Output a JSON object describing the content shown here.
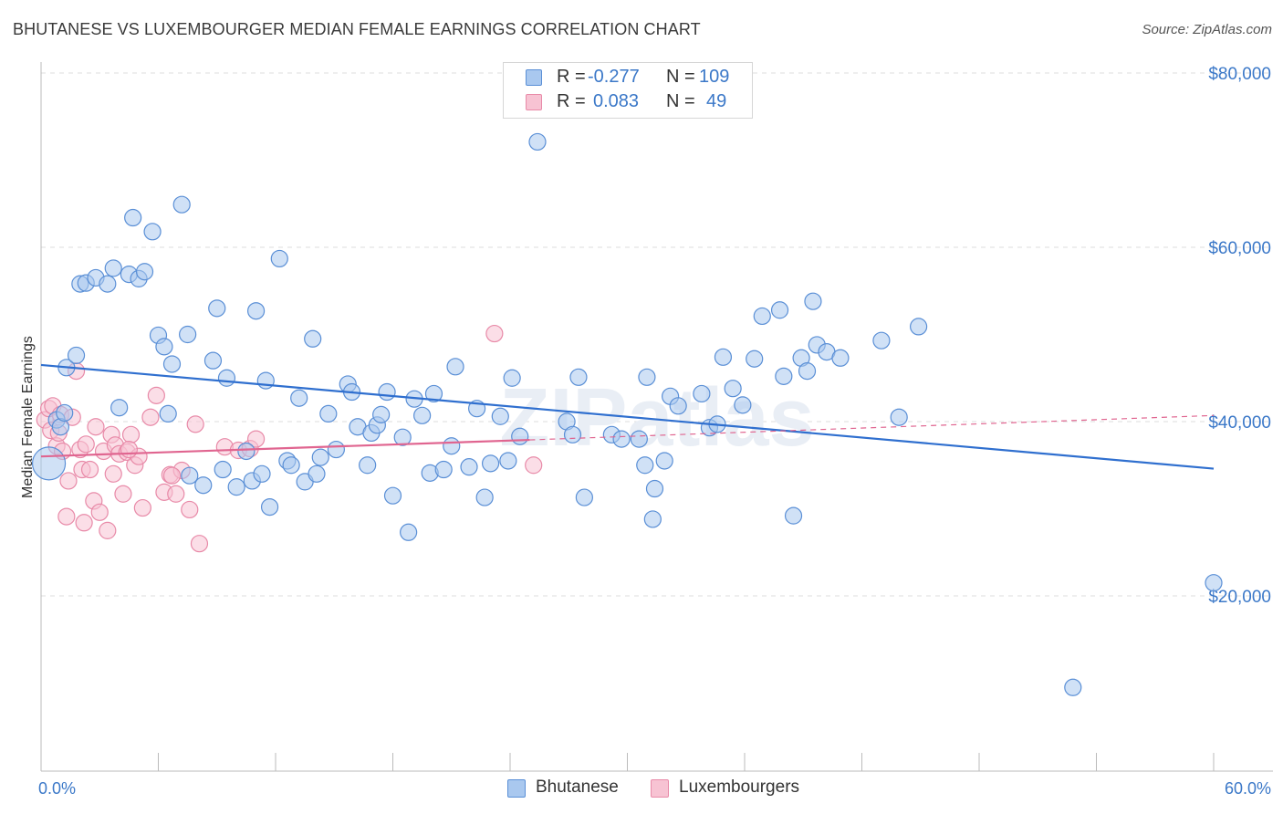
{
  "title": "BHUTANESE VS LUXEMBOURGER MEDIAN FEMALE EARNINGS CORRELATION CHART",
  "source": "Source: ZipAtlas.com",
  "watermark": "ZIPatlas",
  "legend": {
    "rows": [
      {
        "r_label": "R =",
        "r_value": "-0.277",
        "n_label": "N =",
        "n_value": "109"
      },
      {
        "r_label": "R =",
        "r_value": "0.083",
        "n_label": "N =",
        "n_value": "49"
      }
    ]
  },
  "bottom_legend": {
    "series1": "Bhutanese",
    "series2": "Luxembourgers"
  },
  "colors": {
    "blue_fill": "#a9c8ef",
    "blue_stroke": "#5a8fd6",
    "blue_line": "#2f6fcf",
    "pink_fill": "#f7c3d3",
    "pink_stroke": "#e88aa8",
    "pink_line": "#e06590",
    "axis_text": "#3b78c8",
    "grid": "#dcdcdc"
  },
  "chart_data": {
    "type": "scatter",
    "title": "BHUTANESE VS LUXEMBOURGER MEDIAN FEMALE EARNINGS CORRELATION CHART",
    "xlabel": "",
    "ylabel": "Median Female Earnings",
    "xlim": [
      0,
      60
    ],
    "ylim": [
      0,
      82000
    ],
    "x_tick_labels": [
      "0.0%",
      "60.0%"
    ],
    "y_ticks": [
      20000,
      40000,
      60000,
      80000
    ],
    "y_tick_labels": [
      "$20,000",
      "$40,000",
      "$60,000",
      "$80,000"
    ],
    "grid": "horizontal dashed",
    "legend_position": "top-center",
    "series": [
      {
        "name": "Bhutanese",
        "r": -0.277,
        "n": 109,
        "trend": {
          "x": [
            0,
            60
          ],
          "y": [
            46500,
            34600
          ]
        },
        "points": [
          [
            0.4,
            35200
          ],
          [
            0.8,
            40200
          ],
          [
            1.0,
            39400
          ],
          [
            1.2,
            41000
          ],
          [
            1.3,
            46200
          ],
          [
            1.8,
            47600
          ],
          [
            2.0,
            55800
          ],
          [
            2.3,
            55900
          ],
          [
            2.8,
            56500
          ],
          [
            3.4,
            55800
          ],
          [
            3.7,
            57600
          ],
          [
            4.0,
            41600
          ],
          [
            4.5,
            56900
          ],
          [
            4.7,
            63400
          ],
          [
            5.0,
            56400
          ],
          [
            5.3,
            57200
          ],
          [
            5.7,
            61800
          ],
          [
            6.0,
            49900
          ],
          [
            6.3,
            48600
          ],
          [
            6.7,
            46600
          ],
          [
            6.5,
            40900
          ],
          [
            7.2,
            64900
          ],
          [
            7.5,
            50000
          ],
          [
            7.6,
            33800
          ],
          [
            8.3,
            32700
          ],
          [
            8.8,
            47000
          ],
          [
            9.0,
            53000
          ],
          [
            9.3,
            34500
          ],
          [
            9.5,
            45000
          ],
          [
            10.0,
            32500
          ],
          [
            10.5,
            36600
          ],
          [
            10.8,
            33200
          ],
          [
            11.0,
            52700
          ],
          [
            11.3,
            34000
          ],
          [
            11.5,
            44700
          ],
          [
            11.7,
            30200
          ],
          [
            12.2,
            58700
          ],
          [
            12.6,
            35500
          ],
          [
            12.8,
            35000
          ],
          [
            13.2,
            42700
          ],
          [
            13.5,
            33100
          ],
          [
            13.9,
            49500
          ],
          [
            14.1,
            34000
          ],
          [
            14.3,
            35900
          ],
          [
            14.7,
            40900
          ],
          [
            15.1,
            36800
          ],
          [
            15.7,
            44300
          ],
          [
            15.9,
            43400
          ],
          [
            16.2,
            39400
          ],
          [
            16.7,
            35000
          ],
          [
            16.9,
            38700
          ],
          [
            17.2,
            39600
          ],
          [
            17.4,
            40800
          ],
          [
            17.7,
            43400
          ],
          [
            18.0,
            31500
          ],
          [
            18.5,
            38200
          ],
          [
            18.8,
            27300
          ],
          [
            19.1,
            42600
          ],
          [
            19.5,
            40700
          ],
          [
            19.9,
            34100
          ],
          [
            20.1,
            43200
          ],
          [
            20.6,
            34500
          ],
          [
            21.0,
            37200
          ],
          [
            21.2,
            46300
          ],
          [
            21.9,
            34800
          ],
          [
            22.3,
            41500
          ],
          [
            22.7,
            31300
          ],
          [
            23.0,
            35200
          ],
          [
            23.5,
            40600
          ],
          [
            23.9,
            35500
          ],
          [
            24.1,
            45000
          ],
          [
            24.5,
            38300
          ],
          [
            25.4,
            72100
          ],
          [
            26.9,
            40000
          ],
          [
            27.2,
            38500
          ],
          [
            27.5,
            45100
          ],
          [
            27.8,
            31300
          ],
          [
            29.2,
            38500
          ],
          [
            29.7,
            38000
          ],
          [
            30.6,
            38000
          ],
          [
            30.9,
            35000
          ],
          [
            31.3,
            28800
          ],
          [
            31.4,
            32300
          ],
          [
            31.9,
            35500
          ],
          [
            32.2,
            42900
          ],
          [
            32.6,
            41800
          ],
          [
            33.8,
            43200
          ],
          [
            34.2,
            39300
          ],
          [
            34.6,
            39700
          ],
          [
            34.9,
            47400
          ],
          [
            35.4,
            43800
          ],
          [
            35.9,
            41900
          ],
          [
            36.5,
            47200
          ],
          [
            36.9,
            52100
          ],
          [
            37.8,
            52800
          ],
          [
            38.0,
            45200
          ],
          [
            38.5,
            29200
          ],
          [
            38.9,
            47300
          ],
          [
            39.2,
            45800
          ],
          [
            39.5,
            53800
          ],
          [
            39.7,
            48800
          ],
          [
            40.2,
            48000
          ],
          [
            40.9,
            47300
          ],
          [
            43.0,
            49300
          ],
          [
            43.9,
            40500
          ],
          [
            44.9,
            50900
          ],
          [
            52.8,
            9500
          ],
          [
            60.0,
            21500
          ],
          [
            31.0,
            45100
          ]
        ]
      },
      {
        "name": "Luxembourgers",
        "r": 0.083,
        "n": 49,
        "trend": {
          "x": [
            0,
            25
          ],
          "y": [
            36000,
            37900
          ]
        },
        "trend_extension": {
          "x": [
            25,
            60
          ],
          "y": [
            37900,
            40700
          ]
        },
        "points": [
          [
            0.2,
            40200
          ],
          [
            0.4,
            41500
          ],
          [
            0.5,
            39000
          ],
          [
            0.6,
            41800
          ],
          [
            0.8,
            37200
          ],
          [
            0.9,
            38700
          ],
          [
            1.0,
            40800
          ],
          [
            1.1,
            36600
          ],
          [
            1.3,
            29100
          ],
          [
            1.4,
            33200
          ],
          [
            1.6,
            40500
          ],
          [
            1.8,
            45800
          ],
          [
            2.0,
            36800
          ],
          [
            2.1,
            34500
          ],
          [
            2.2,
            28400
          ],
          [
            2.3,
            37400
          ],
          [
            2.5,
            34500
          ],
          [
            2.7,
            30900
          ],
          [
            2.8,
            39400
          ],
          [
            3.0,
            29600
          ],
          [
            3.2,
            36600
          ],
          [
            3.4,
            27500
          ],
          [
            3.6,
            38500
          ],
          [
            3.7,
            34000
          ],
          [
            3.8,
            37300
          ],
          [
            4.0,
            36300
          ],
          [
            4.2,
            31700
          ],
          [
            4.4,
            36500
          ],
          [
            4.6,
            38500
          ],
          [
            4.8,
            35000
          ],
          [
            5.0,
            36000
          ],
          [
            5.2,
            30100
          ],
          [
            5.6,
            40500
          ],
          [
            5.9,
            43000
          ],
          [
            6.3,
            31900
          ],
          [
            6.6,
            33900
          ],
          [
            6.9,
            31700
          ],
          [
            7.2,
            34400
          ],
          [
            7.6,
            29900
          ],
          [
            7.9,
            39700
          ],
          [
            8.1,
            26000
          ],
          [
            9.4,
            37100
          ],
          [
            10.1,
            36700
          ],
          [
            10.7,
            36900
          ],
          [
            11.0,
            38000
          ],
          [
            23.2,
            50100
          ],
          [
            25.2,
            35000
          ],
          [
            4.5,
            36800
          ],
          [
            6.7,
            33800
          ]
        ]
      }
    ]
  }
}
